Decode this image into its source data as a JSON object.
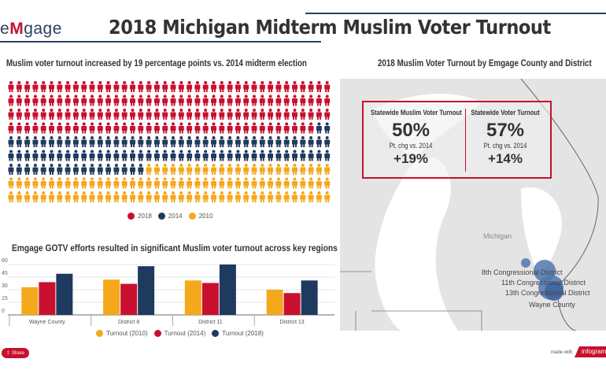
{
  "header": {
    "logo_prefix": "e",
    "logo_m": "M",
    "logo_suffix": "gage",
    "title": "2018 Michigan Midterm Muslim Voter Turnout"
  },
  "pictogram": {
    "title": "Muslim voter turnout increased by 19 percentage points vs. 2014 midterm election",
    "counts": {
      "2018": 158,
      "2014": 99,
      "2010": 103
    },
    "per_row": 40,
    "legend": [
      {
        "label": "2018",
        "color": "#c8102e"
      },
      {
        "label": "2014",
        "color": "#1f3a5f"
      },
      {
        "label": "2010",
        "color": "#f5a81c"
      }
    ]
  },
  "map": {
    "title": "2018 Muslim Voter Turnout by Emgage County and District",
    "state_label": "Michigan",
    "labels": [
      "8th Congressional District",
      "11th Congressional District",
      "13th Congressional District",
      "Wayne County"
    ],
    "kpi": [
      {
        "label": "Statewide Muslim Voter Turnout",
        "value": "50%",
        "chg_label": "Pt. chg vs. 2014",
        "chg": "+19%"
      },
      {
        "label": "Statewide Voter Turnout",
        "value": "57%",
        "chg_label": "Pt. chg vs. 2014",
        "chg": "+14%"
      }
    ]
  },
  "chart_data": {
    "type": "bar",
    "title": "Emgage GOTV efforts resulted in significant Muslim voter turnout across key regions",
    "categories": [
      "Wayne County",
      "District 8",
      "District 11",
      "District 13"
    ],
    "series": [
      {
        "name": "Turnout (2010)",
        "color": "#f5a81c",
        "values": [
          33,
          42,
          41,
          30
        ]
      },
      {
        "name": "Turnout (2014)",
        "color": "#c8102e",
        "values": [
          39,
          37,
          38,
          26
        ]
      },
      {
        "name": "Turnout (2018)",
        "color": "#1f3a5f",
        "values": [
          49,
          58,
          60,
          41
        ]
      }
    ],
    "ylim": [
      0,
      60
    ],
    "yticks": [
      0,
      15,
      30,
      45,
      60
    ],
    "grid": true,
    "legend": "bottom"
  },
  "footer": {
    "share": "Share",
    "made_with": "made with",
    "brand": "infogram"
  }
}
